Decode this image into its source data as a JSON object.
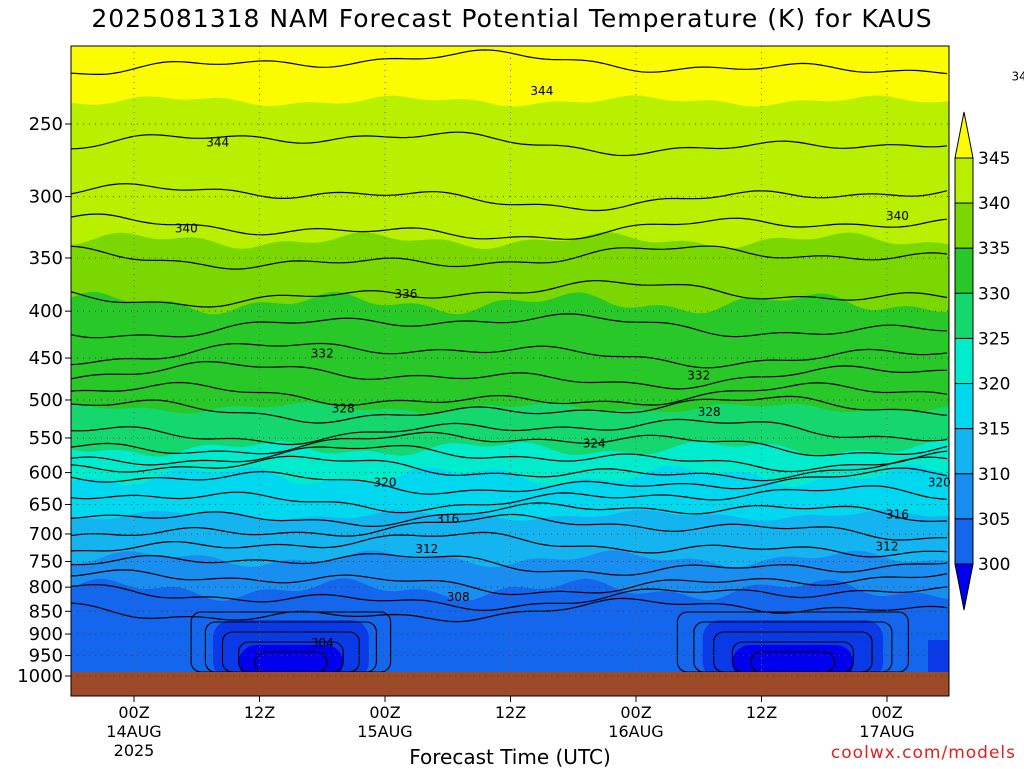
{
  "chart_data": {
    "type": "heatmap",
    "title": "2025081318 NAM Forecast Potential Temperature (K) for KAUS",
    "xlabel": "Forecast Time (UTC)",
    "ylabel": "",
    "y_scale": "log-pressure",
    "y_ticks": [
      250,
      300,
      350,
      400,
      450,
      500,
      550,
      600,
      650,
      700,
      750,
      800,
      850,
      900,
      950,
      1000
    ],
    "x_ticks": [
      {
        "label": "00Z",
        "sub": "14AUG",
        "sub2": "2025"
      },
      {
        "label": "12Z",
        "sub": "",
        "sub2": ""
      },
      {
        "label": "00Z",
        "sub": "15AUG",
        "sub2": ""
      },
      {
        "label": "12Z",
        "sub": "",
        "sub2": ""
      },
      {
        "label": "00Z",
        "sub": "16AUG",
        "sub2": ""
      },
      {
        "label": "12Z",
        "sub": "",
        "sub2": ""
      },
      {
        "label": "00Z",
        "sub": "17AUG",
        "sub2": ""
      }
    ],
    "colorbar_levels": [
      300,
      305,
      310,
      315,
      320,
      325,
      330,
      335,
      340,
      345
    ],
    "colorbar_colors": [
      "#0000ee",
      "#0a3ae8",
      "#1466ec",
      "#1a8ef0",
      "#14b4f0",
      "#00d8f0",
      "#00eccc",
      "#14d86e",
      "#28c828",
      "#7ad800",
      "#b8f000",
      "#fcfc00"
    ],
    "contour_levels": [
      304,
      308,
      312,
      316,
      320,
      324,
      328,
      332,
      336,
      340,
      344
    ],
    "contour_labels": [
      {
        "value": "344",
        "hour": 8,
        "p": 262
      },
      {
        "value": "344",
        "hour": 39,
        "p": 230
      },
      {
        "value": "344",
        "hour": 85,
        "p": 222
      },
      {
        "value": "344",
        "hour": 112,
        "p": 210
      },
      {
        "value": "340",
        "hour": 5,
        "p": 325
      },
      {
        "value": "340",
        "hour": 73,
        "p": 315
      },
      {
        "value": "340",
        "hour": 117,
        "p": 300
      },
      {
        "value": "336",
        "hour": 26,
        "p": 383
      },
      {
        "value": "336",
        "hour": 108,
        "p": 395
      },
      {
        "value": "332",
        "hour": 18,
        "p": 445
      },
      {
        "value": "332",
        "hour": 54,
        "p": 470
      },
      {
        "value": "332",
        "hour": 101,
        "p": 467
      },
      {
        "value": "328",
        "hour": 20,
        "p": 511
      },
      {
        "value": "328",
        "hour": 55,
        "p": 515
      },
      {
        "value": "328",
        "hour": 96,
        "p": 495
      },
      {
        "value": "324",
        "hour": 44,
        "p": 558
      },
      {
        "value": "324",
        "hour": 101,
        "p": 578
      },
      {
        "value": "320",
        "hour": 24,
        "p": 615
      },
      {
        "value": "320",
        "hour": 77,
        "p": 615
      },
      {
        "value": "320",
        "hour": 114,
        "p": 610
      },
      {
        "value": "316",
        "hour": 30,
        "p": 674
      },
      {
        "value": "316",
        "hour": 73,
        "p": 667
      },
      {
        "value": "316",
        "hour": 116,
        "p": 673
      },
      {
        "value": "312",
        "hour": 28,
        "p": 727
      },
      {
        "value": "312",
        "hour": 72,
        "p": 722
      },
      {
        "value": "312",
        "hour": 116,
        "p": 720
      },
      {
        "value": "308",
        "hour": 31,
        "p": 820
      },
      {
        "value": "308",
        "hour": 112,
        "p": 795
      },
      {
        "value": "304",
        "hour": 18,
        "p": 920
      },
      {
        "value": "304",
        "hour": 106,
        "p": 860
      }
    ],
    "forecast_hours_range": [
      0,
      84
    ]
  },
  "credit": "coolwx.com/models",
  "colors": {
    "ground": "#9c4a28",
    "grid": "#555555",
    "contour": "#000000"
  }
}
